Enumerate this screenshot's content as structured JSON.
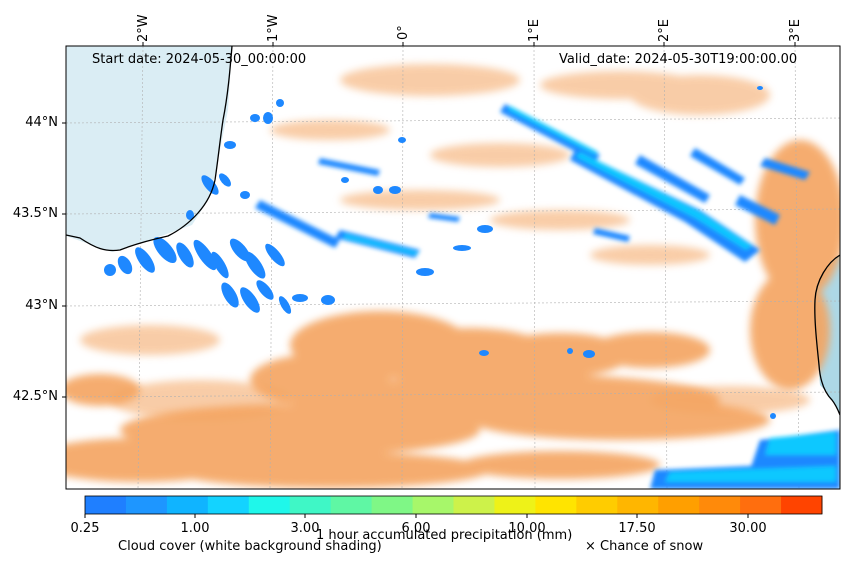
{
  "header": {
    "start_date": "Start date: 2024-05-30_00:00:00",
    "valid_date": "Valid_date: 2024-05-30T19:00:00.00"
  },
  "map": {
    "longitude_labels": [
      "2°W",
      "1°W",
      "0°",
      "1°E",
      "2°E",
      "3°E"
    ],
    "latitude_labels": [
      "44°N",
      "43.5°N",
      "43°N",
      "42.5°N"
    ],
    "colors": {
      "sea": "#add8e6",
      "cloud_cover": "#f4a460",
      "coastline": "#000000",
      "gridline": "#b0b0b0"
    }
  },
  "colorbar": {
    "tick_labels": [
      "0.25",
      "1.00",
      "3.00",
      "6.00",
      "10.00",
      "17.50",
      "30.00"
    ],
    "colors": [
      "#1f7fff",
      "#1e96ff",
      "#10b4ff",
      "#13d3ff",
      "#1ff7ea",
      "#3ff7c6",
      "#5ff7a4",
      "#7ff786",
      "#a7f76a",
      "#cdf24a",
      "#eef218",
      "#ffe400",
      "#ffcc00",
      "#ffb600",
      "#ff9f00",
      "#ff8a0a",
      "#ff6e0e",
      "#ff4400"
    ],
    "label": "1 hour accumulated precipitation (mm)"
  },
  "legend": {
    "cloud_cover": "Cloud cover (white background shading)",
    "snow": "× Chance of snow"
  }
}
